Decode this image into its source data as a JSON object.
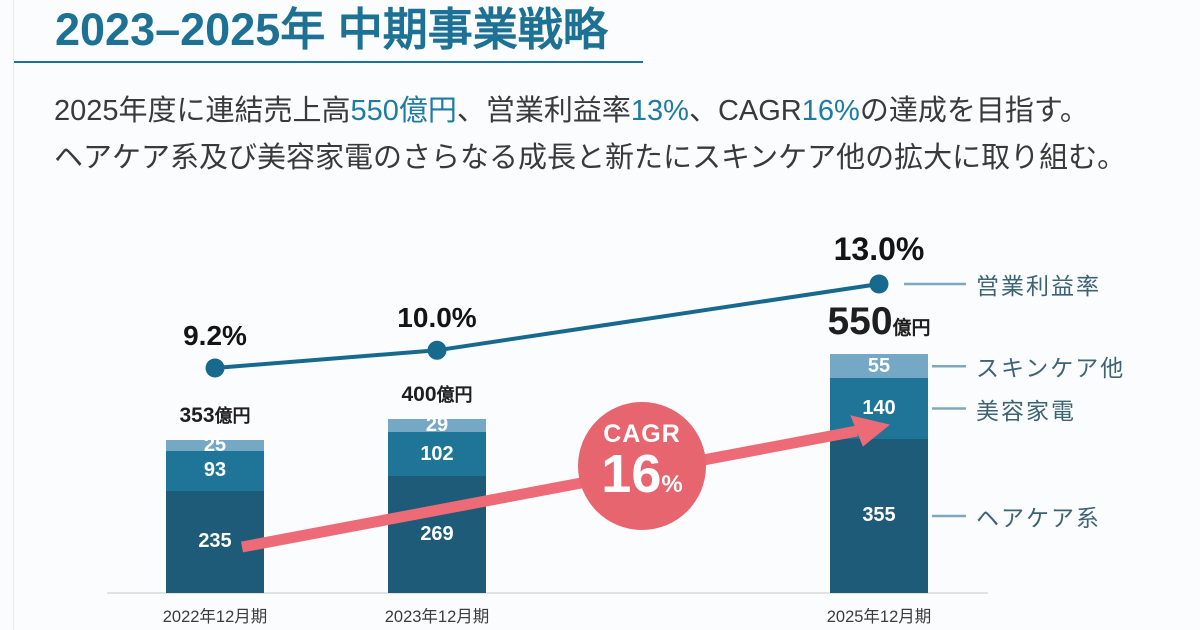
{
  "header": {
    "title": "2023–2025年 中期事業戦略"
  },
  "lead": {
    "line1_parts": [
      {
        "text": "2025年度に連結売上高",
        "highlight": false
      },
      {
        "text": "550億円",
        "highlight": true
      },
      {
        "text": "、営業利益率",
        "highlight": false
      },
      {
        "text": "13%",
        "highlight": true
      },
      {
        "text": "、CAGR",
        "highlight": false
      },
      {
        "text": "16%",
        "highlight": true
      },
      {
        "text": "の達成を目指す。",
        "highlight": false
      }
    ],
    "line2": "ヘアケア系及び美容家電のさらなる成長と新たにスキンケア他の拡大に取り組む。"
  },
  "colors": {
    "accent": "#1d7194",
    "highlight_text": "#1e7ba4",
    "axis_line": "#e0e2e3"
  },
  "chart_data": {
    "type": "stacked-bar-with-line",
    "categories": [
      "2022年12月期",
      "2023年12月期",
      "2025年12月期"
    ],
    "totals": [
      353,
      400,
      550
    ],
    "total_unit": "億円",
    "ylim": [
      0,
      550
    ],
    "series": [
      {
        "key": "haircare",
        "name": "ヘアケア系",
        "values": [
          235,
          269,
          355
        ],
        "color": "#1d5b78"
      },
      {
        "key": "beauty-appliance",
        "name": "美容家電",
        "values": [
          93,
          102,
          140
        ],
        "color": "#1e7598"
      },
      {
        "key": "skincare-other",
        "name": "スキンケア他",
        "values": [
          25,
          29,
          55
        ],
        "color": "#74a8c5"
      }
    ],
    "line": {
      "key": "operating-margin",
      "name": "営業利益率",
      "values_pct": [
        9.2,
        10.0,
        13.0
      ],
      "labels": [
        "9.2%",
        "10.0%",
        "13.0%"
      ],
      "color": "#17698e",
      "connector_color": "#7fa8bd"
    },
    "annotation": {
      "key": "cagr",
      "label": "CAGR",
      "value": "16",
      "unit": "%",
      "circle_color": "#e7656f",
      "arrow_color": "#ec6b76"
    },
    "legend_position": "right",
    "grid": false
  }
}
